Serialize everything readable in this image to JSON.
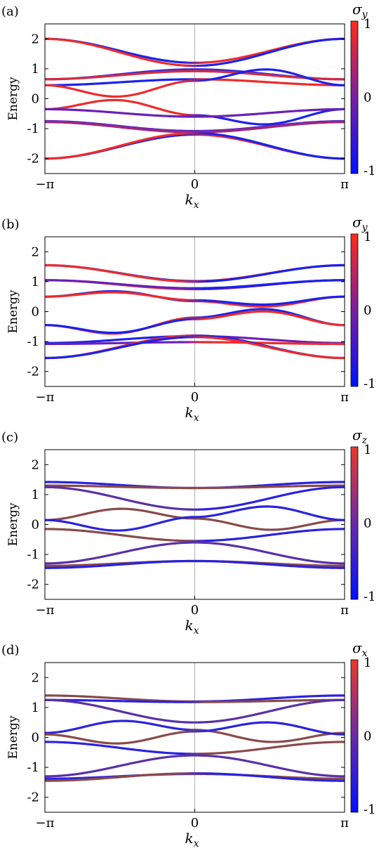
{
  "chart_data": [
    {
      "type": "line",
      "panel_label": "(a)",
      "xlabel": "k_x",
      "xlabel_main": "k",
      "xlabel_sub": "x",
      "ylabel": "Energy",
      "xlim": [
        -3.14159,
        3.14159
      ],
      "ylim": [
        -2.5,
        2.5
      ],
      "x_ticks": [
        -3.14159,
        0,
        3.14159
      ],
      "x_tick_labels": [
        "−π",
        "0",
        "π"
      ],
      "y_ticks": [
        -2,
        -1,
        0,
        1,
        2
      ],
      "y_tick_labels": [
        "-2",
        "-1",
        "0",
        "1",
        "2"
      ],
      "colorbar": {
        "title_main": "σ",
        "title_sub": "y",
        "min": -1,
        "max": 1,
        "tick_labels": [
          "1",
          "0",
          "-1"
        ],
        "colors": [
          "#ff2a1a",
          "#7a1fa0",
          "#0011ff"
        ]
      },
      "grid": false,
      "bands": [
        {
          "e_edge": 2.0,
          "e_mid": 1.2,
          "shape": "cos",
          "color_left": "#1a22ee",
          "color_right": "#ee2b2b"
        },
        {
          "e_edge": 2.0,
          "e_mid": 1.1,
          "shape": "cos",
          "color_left": "#ee2b2b",
          "color_right": "#1a22ee"
        },
        {
          "e_edge": 0.65,
          "e_mid": 0.98,
          "shape": "cos",
          "color_left": "#3a2ad8",
          "color_right": "#3a2ad8"
        },
        {
          "e_edge": 0.65,
          "e_mid": 0.92,
          "shape": "cos",
          "color_left": "#d82a40",
          "color_right": "#d82a40"
        },
        {
          "e_edge": 0.45,
          "e_mid": 0.65,
          "shape": "cos",
          "color_left": "#1a22ee",
          "color_right": "#ee2b2b"
        },
        {
          "e_edge": 0.45,
          "e_mid": 0.6,
          "shape": "bump",
          "bump": -0.45,
          "color_left": "#ee2b2b",
          "color_right": "#1a22ee"
        },
        {
          "e_edge": -0.35,
          "e_mid": -0.55,
          "shape": "bump",
          "bump": 0.4,
          "color_left": "#ee2b2b",
          "color_right": "#1a22ee"
        },
        {
          "e_edge": -0.35,
          "e_mid": -0.6,
          "shape": "cos",
          "color_left": "#6a20b8",
          "color_right": "#6a20b8"
        },
        {
          "e_edge": -0.75,
          "e_mid": -1.08,
          "shape": "cos",
          "color_left": "#5a28c8",
          "color_right": "#5a28c8"
        },
        {
          "e_edge": -0.78,
          "e_mid": -1.12,
          "shape": "cos",
          "color_left": "#a02878",
          "color_right": "#a02878"
        },
        {
          "e_edge": -2.0,
          "e_mid": -1.2,
          "shape": "cos",
          "color_left": "#1a22ee",
          "color_right": "#ee2b2b"
        },
        {
          "e_edge": -2.0,
          "e_mid": -1.15,
          "shape": "cos",
          "color_left": "#ee2b2b",
          "color_right": "#1a22ee"
        }
      ]
    },
    {
      "type": "line",
      "panel_label": "(b)",
      "xlabel": "k_x",
      "xlabel_main": "k",
      "xlabel_sub": "x",
      "ylabel": "Energy",
      "xlim": [
        -3.14159,
        3.14159
      ],
      "ylim": [
        -2.5,
        2.5
      ],
      "x_ticks": [
        -3.14159,
        0,
        3.14159
      ],
      "x_tick_labels": [
        "−π",
        "0",
        "π"
      ],
      "y_ticks": [
        -2,
        -1,
        0,
        1,
        2
      ],
      "y_tick_labels": [
        "-2",
        "-1",
        "0",
        "1",
        "2"
      ],
      "colorbar": {
        "title_main": "σ",
        "title_sub": "y",
        "min": -1,
        "max": 1,
        "tick_labels": [
          "1",
          "0",
          "-1"
        ],
        "colors": [
          "#ff2a1a",
          "#7a1fa0",
          "#0011ff"
        ]
      },
      "grid": false,
      "bands": [
        {
          "e_edge": 1.55,
          "e_mid": 1.02,
          "shape": "cos",
          "color_left": "#1a22ee",
          "color_right": "#ee2b2b"
        },
        {
          "e_edge": 1.55,
          "e_mid": 1.0,
          "shape": "cos",
          "color_left": "#ee2b2b",
          "color_right": "#1a22ee"
        },
        {
          "e_edge": 1.05,
          "e_mid": 0.75,
          "shape": "cos",
          "color_left": "#ee2b2b",
          "color_right": "#6a20b8"
        },
        {
          "e_edge": 1.05,
          "e_mid": 0.78,
          "shape": "cos",
          "color_left": "#6a20b8",
          "color_right": "#1a22ee"
        },
        {
          "e_edge": 0.5,
          "e_mid": 0.35,
          "shape": "bump",
          "bump": 0.25,
          "color_left": "#1a22ee",
          "color_right": "#ee2b2b"
        },
        {
          "e_edge": 0.5,
          "e_mid": 0.38,
          "shape": "bump",
          "bump": 0.2,
          "color_left": "#ee2b2b",
          "color_right": "#1a22ee"
        },
        {
          "e_edge": -0.45,
          "e_mid": -0.2,
          "shape": "bump",
          "bump": -0.4,
          "color_left": "#ee2b2b",
          "color_right": "#1a22ee"
        },
        {
          "e_edge": -0.45,
          "e_mid": -0.25,
          "shape": "bump",
          "bump": -0.35,
          "color_left": "#1a22ee",
          "color_right": "#ee2b2b"
        },
        {
          "e_edge": -1.05,
          "e_mid": -0.82,
          "shape": "cos",
          "color_left": "#1a22ee",
          "color_right": "#6a20b8"
        },
        {
          "e_edge": -1.08,
          "e_mid": -1.02,
          "shape": "cos",
          "color_left": "#6a20b8",
          "color_right": "#ee2b2b"
        },
        {
          "e_edge": -1.55,
          "e_mid": -0.8,
          "shape": "cos",
          "color_left": "#ee2b2b",
          "color_right": "#1a22ee"
        },
        {
          "e_edge": -1.55,
          "e_mid": -0.85,
          "shape": "cos",
          "color_left": "#1a22ee",
          "color_right": "#ee2b2b"
        }
      ]
    },
    {
      "type": "line",
      "panel_label": "(c)",
      "xlabel": "k_x",
      "xlabel_main": "k",
      "xlabel_sub": "x",
      "ylabel": "Energy",
      "xlim": [
        -3.14159,
        3.14159
      ],
      "ylim": [
        -2.5,
        2.5
      ],
      "x_ticks": [
        -3.14159,
        0,
        3.14159
      ],
      "x_tick_labels": [
        "−π",
        "0",
        "π"
      ],
      "y_ticks": [
        -2,
        -1,
        0,
        1,
        2
      ],
      "y_tick_labels": [
        "-2",
        "-1",
        "0",
        "1",
        "2"
      ],
      "colorbar": {
        "title_main": "σ",
        "title_sub": "z",
        "min": -1,
        "max": 1,
        "tick_labels": [
          "1",
          "0",
          "-1"
        ],
        "colors": [
          "#e83a2a",
          "#6a2aa8",
          "#0011ff"
        ]
      },
      "grid": false,
      "bands": [
        {
          "e_edge": 1.42,
          "e_mid": 1.22,
          "shape": "cos",
          "color_left": "#2a22e0",
          "color_right": "#2a22e0"
        },
        {
          "e_edge": 1.3,
          "e_mid": 1.22,
          "shape": "cos",
          "color_left": "#8a4a4a",
          "color_right": "#8a4a4a"
        },
        {
          "e_edge": 1.25,
          "e_mid": 0.5,
          "shape": "cos",
          "color_left": "#5a30a8",
          "color_right": "#2a22e0"
        },
        {
          "e_edge": 0.15,
          "e_mid": 0.2,
          "shape": "bump",
          "bump": 0.35,
          "color_left": "#8a4a4a",
          "color_right": "#8a4a4a"
        },
        {
          "e_edge": 0.15,
          "e_mid": 0.25,
          "shape": "bump",
          "bump": -0.4,
          "color_left": "#2a22e0",
          "color_right": "#2a22e0"
        },
        {
          "e_edge": -0.15,
          "e_mid": -0.55,
          "shape": "cos",
          "color_left": "#8a4a4a",
          "color_right": "#2a22e0"
        },
        {
          "e_edge": -1.3,
          "e_mid": -0.6,
          "shape": "cos",
          "color_left": "#5a30a8",
          "color_right": "#5a30a8"
        },
        {
          "e_edge": -1.38,
          "e_mid": -1.22,
          "shape": "cos",
          "color_left": "#8a4a4a",
          "color_right": "#8a4a4a"
        },
        {
          "e_edge": -1.45,
          "e_mid": -1.22,
          "shape": "cos",
          "color_left": "#2a22e0",
          "color_right": "#2a22e0"
        }
      ]
    },
    {
      "type": "line",
      "panel_label": "(d)",
      "xlabel": "k_x",
      "xlabel_main": "k",
      "xlabel_sub": "x",
      "ylabel": "Energy",
      "xlim": [
        -3.14159,
        3.14159
      ],
      "ylim": [
        -2.5,
        2.5
      ],
      "x_ticks": [
        -3.14159,
        0,
        3.14159
      ],
      "x_tick_labels": [
        "−π",
        "0",
        "π"
      ],
      "y_ticks": [
        -2,
        -1,
        0,
        1,
        2
      ],
      "y_tick_labels": [
        "-2",
        "-1",
        "0",
        "1",
        "2"
      ],
      "colorbar": {
        "title_main": "σ",
        "title_sub": "x",
        "min": -1,
        "max": 1,
        "tick_labels": [
          "1",
          "0",
          "-1"
        ],
        "colors": [
          "#e83a2a",
          "#6a2aa8",
          "#0011ff"
        ]
      },
      "grid": false,
      "bands": [
        {
          "e_edge": 1.4,
          "e_mid": 1.2,
          "shape": "cos",
          "color_left": "#8a4a4a",
          "color_right": "#2a22e0"
        },
        {
          "e_edge": 1.25,
          "e_mid": 1.18,
          "shape": "cos",
          "color_left": "#2a22e0",
          "color_right": "#8a4a4a"
        },
        {
          "e_edge": 1.25,
          "e_mid": 0.5,
          "shape": "cos",
          "color_left": "#5a30a8",
          "color_right": "#5a30a8"
        },
        {
          "e_edge": 0.15,
          "e_mid": 0.25,
          "shape": "bump",
          "bump": 0.35,
          "color_left": "#2a22e0",
          "color_right": "#8a4a4a"
        },
        {
          "e_edge": 0.1,
          "e_mid": 0.2,
          "shape": "bump",
          "bump": -0.35,
          "color_left": "#8a4a4a",
          "color_right": "#2a22e0"
        },
        {
          "e_edge": -0.15,
          "e_mid": -0.55,
          "shape": "cos",
          "color_left": "#2a22e0",
          "color_right": "#8a4a4a"
        },
        {
          "e_edge": -1.3,
          "e_mid": -0.6,
          "shape": "cos",
          "color_left": "#5a30a8",
          "color_right": "#5a30a8"
        },
        {
          "e_edge": -1.38,
          "e_mid": -1.22,
          "shape": "cos",
          "color_left": "#2a22e0",
          "color_right": "#8a4a4a"
        },
        {
          "e_edge": -1.45,
          "e_mid": -1.2,
          "shape": "cos",
          "color_left": "#8a4a4a",
          "color_right": "#2a22e0"
        }
      ]
    }
  ]
}
